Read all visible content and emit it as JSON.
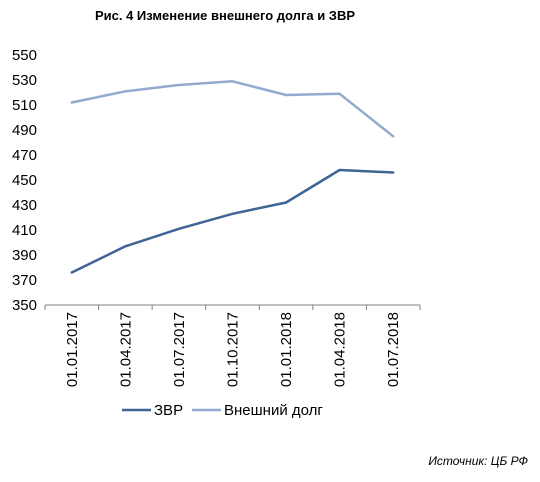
{
  "chart_data": {
    "type": "line",
    "title": "Рис. 4 Изменение внешнего долга и ЗВР",
    "categories": [
      "01.01.2017",
      "01.04.2017",
      "01.07.2017",
      "01.10.2017",
      "01.01.2018",
      "01.04.2018",
      "01.07.2018"
    ],
    "series": [
      {
        "name": "ЗВР",
        "color": "#3d6596",
        "values": [
          376,
          397,
          411,
          423,
          432,
          458,
          456
        ]
      },
      {
        "name": "Внешний долг",
        "color": "#93a9cf",
        "values": [
          512,
          521,
          526,
          529,
          518,
          519,
          485
        ]
      }
    ],
    "ylim": [
      350,
      550
    ],
    "yticks": [
      350,
      370,
      390,
      410,
      430,
      450,
      470,
      490,
      510,
      530,
      550
    ],
    "grid": false,
    "legend_position": "bottom",
    "source": "Источник: ЦБ РФ"
  }
}
